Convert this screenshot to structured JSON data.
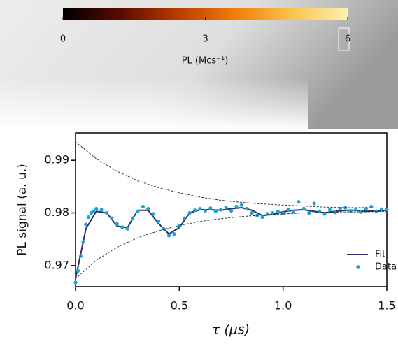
{
  "chart_data": [
    {
      "type": "colorbar",
      "label": "PL (Mcs⁻¹)",
      "xlim": [
        0,
        6
      ],
      "xticks": [
        0,
        3,
        6
      ],
      "colors": [
        "#000000",
        "#5a0a00",
        "#b83a00",
        "#f07b0a",
        "#f9c24a",
        "#fbf1b0"
      ]
    },
    {
      "type": "line",
      "xlabel": "τ (μs)",
      "ylabel": "PL signal (a. u.)",
      "xlim": [
        0,
        1.5
      ],
      "ylim": [
        0.966,
        0.9952
      ],
      "xticks": [
        {
          "value": 0,
          "label": "0.0"
        },
        0.5,
        {
          "value": 1,
          "label": "1.0"
        },
        1.5
      ],
      "yticks": [
        0.97,
        0.98,
        0.99
      ],
      "legend": "lower right",
      "series": [
        {
          "name": "Fit",
          "type": "line",
          "color": "#2e2f5e",
          "x": [
            0,
            0.05,
            0.1,
            0.15,
            0.2,
            0.25,
            0.3,
            0.35,
            0.4,
            0.45,
            0.5,
            0.55,
            0.6,
            0.65,
            0.7,
            0.75,
            0.8,
            0.85,
            0.9,
            0.95,
            1.0,
            1.05,
            1.1,
            1.15,
            1.2,
            1.25,
            1.3,
            1.35,
            1.4,
            1.45,
            1.5
          ],
          "values": [
            0.9675,
            0.977,
            0.9803,
            0.98,
            0.9775,
            0.9772,
            0.9805,
            0.9805,
            0.978,
            0.976,
            0.9772,
            0.98,
            0.9806,
            0.9806,
            0.9805,
            0.9808,
            0.981,
            0.9805,
            0.9795,
            0.9797,
            0.9802,
            0.9805,
            0.9806,
            0.9803,
            0.98,
            0.9803,
            0.9805,
            0.9805,
            0.9803,
            0.9804,
            0.9805
          ]
        },
        {
          "name": "Data",
          "type": "scatter",
          "color": "#1aa3d9",
          "x": [
            0,
            0.012,
            0.025,
            0.037,
            0.05,
            0.062,
            0.075,
            0.087,
            0.1,
            0.125,
            0.15,
            0.175,
            0.2,
            0.225,
            0.25,
            0.275,
            0.3,
            0.325,
            0.35,
            0.375,
            0.4,
            0.425,
            0.45,
            0.475,
            0.5,
            0.525,
            0.55,
            0.575,
            0.6,
            0.625,
            0.65,
            0.675,
            0.7,
            0.725,
            0.75,
            0.775,
            0.8,
            0.825,
            0.85,
            0.875,
            0.9,
            0.925,
            0.95,
            0.975,
            1.0,
            1.025,
            1.05,
            1.075,
            1.1,
            1.125,
            1.15,
            1.175,
            1.2,
            1.225,
            1.25,
            1.275,
            1.3,
            1.325,
            1.35,
            1.375,
            1.4,
            1.425,
            1.45,
            1.475,
            1.5
          ],
          "values": [
            0.9668,
            0.969,
            0.9718,
            0.9745,
            0.9778,
            0.9792,
            0.98,
            0.9803,
            0.9808,
            0.9806,
            0.98,
            0.979,
            0.9779,
            0.9773,
            0.977,
            0.979,
            0.9803,
            0.9812,
            0.9808,
            0.9798,
            0.9784,
            0.977,
            0.9757,
            0.976,
            0.9776,
            0.979,
            0.98,
            0.9805,
            0.9808,
            0.9804,
            0.9809,
            0.9803,
            0.9806,
            0.981,
            0.9804,
            0.9812,
            0.9815,
            0.9808,
            0.98,
            0.9795,
            0.9792,
            0.9798,
            0.98,
            0.9803,
            0.9799,
            0.9806,
            0.9802,
            0.9821,
            0.9808,
            0.98,
            0.9818,
            0.9803,
            0.9798,
            0.9806,
            0.9801,
            0.9808,
            0.981,
            0.9804,
            0.9806,
            0.9802,
            0.9808,
            0.9812,
            0.9803,
            0.9807,
            0.9806
          ]
        },
        {
          "type": "line",
          "style": "dashed",
          "color": "#222222",
          "x": [
            0,
            0.1,
            0.2,
            0.3,
            0.4,
            0.5,
            0.6,
            0.7,
            0.8,
            0.9,
            1.0,
            1.1,
            1.2,
            1.3,
            1.4,
            1.5
          ],
          "values": [
            0.9935,
            0.9903,
            0.9879,
            0.9861,
            0.9848,
            0.9838,
            0.983,
            0.9824,
            0.982,
            0.9817,
            0.9815,
            0.9813,
            0.9811,
            0.981,
            0.981,
            0.9809
          ]
        },
        {
          "type": "line",
          "style": "dashed",
          "color": "#222222",
          "x": [
            0,
            0.1,
            0.2,
            0.3,
            0.4,
            0.5,
            0.6,
            0.7,
            0.8,
            0.9,
            1.0,
            1.1,
            1.2,
            1.3,
            1.4,
            1.5
          ],
          "values": [
            0.9675,
            0.971,
            0.9735,
            0.9753,
            0.9766,
            0.9776,
            0.9784,
            0.9789,
            0.9793,
            0.9796,
            0.9798,
            0.98,
            0.9801,
            0.9802,
            0.9802,
            0.9803
          ]
        }
      ]
    }
  ]
}
